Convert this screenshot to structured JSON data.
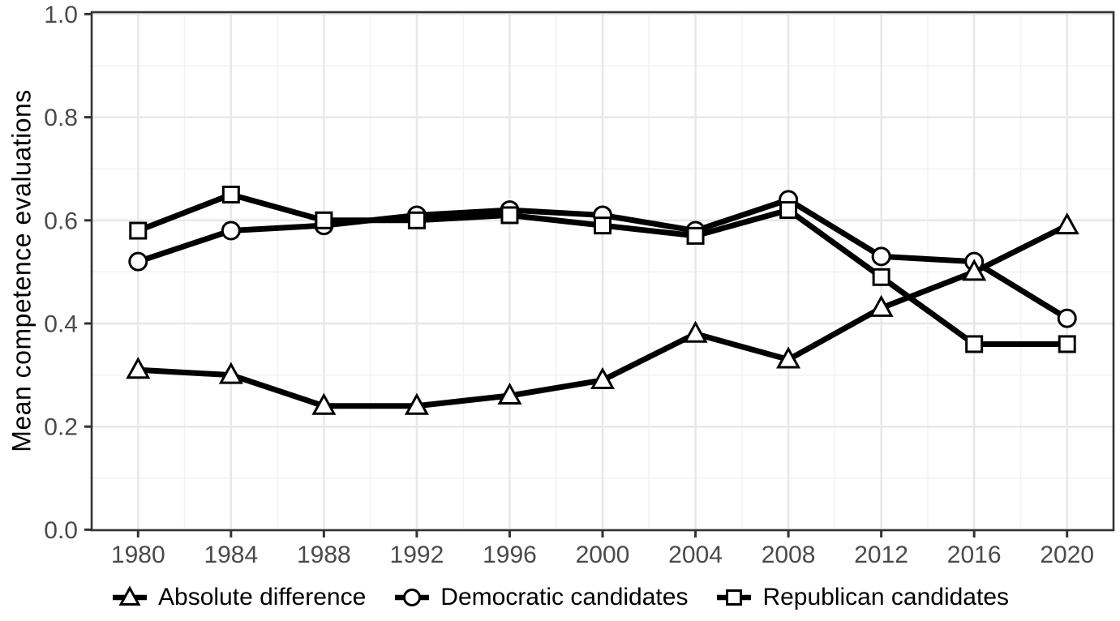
{
  "chart_data": {
    "type": "line",
    "title": "",
    "xlabel": "",
    "ylabel": "Mean competence evaluations",
    "x": [
      1980,
      1984,
      1988,
      1992,
      1996,
      2000,
      2004,
      2008,
      2012,
      2016,
      2020
    ],
    "series": [
      {
        "name": "Absolute difference",
        "marker": "triangle",
        "values": [
          0.31,
          0.3,
          0.24,
          0.24,
          0.26,
          0.29,
          0.38,
          0.33,
          0.43,
          0.5,
          0.59
        ]
      },
      {
        "name": "Democratic candidates",
        "marker": "circle",
        "values": [
          0.52,
          0.58,
          0.59,
          0.61,
          0.62,
          0.61,
          0.58,
          0.64,
          0.53,
          0.52,
          0.41
        ]
      },
      {
        "name": "Republican candidates",
        "marker": "square",
        "values": [
          0.58,
          0.65,
          0.6,
          0.6,
          0.61,
          0.59,
          0.57,
          0.62,
          0.49,
          0.36,
          0.36
        ]
      }
    ],
    "xlim": [
      1978,
      2022
    ],
    "ylim": [
      0.0,
      1.0
    ],
    "xticks": [
      {
        "label": "1980",
        "value": 1980
      },
      {
        "label": "1984",
        "value": 1984
      },
      {
        "label": "1988",
        "value": 1988
      },
      {
        "label": "1992",
        "value": 1992
      },
      {
        "label": "1996",
        "value": 1996
      },
      {
        "label": "2000",
        "value": 2000
      },
      {
        "label": "2004",
        "value": 2004
      },
      {
        "label": "2008",
        "value": 2008
      },
      {
        "label": "2012",
        "value": 2012
      },
      {
        "label": "2016",
        "value": 2016
      },
      {
        "label": "2020",
        "value": 2020
      }
    ],
    "yticks": [
      {
        "label": "0.0",
        "value": 0.0
      },
      {
        "label": "0.2",
        "value": 0.2
      },
      {
        "label": "0.4",
        "value": 0.4
      },
      {
        "label": "0.6",
        "value": 0.6
      },
      {
        "label": "0.8",
        "value": 0.8
      },
      {
        "label": "1.0",
        "value": 1.0
      }
    ],
    "minor_yticks": [
      0.1,
      0.3,
      0.5,
      0.7,
      0.9
    ],
    "grid": "major and minor, light gray, white panel, full dark panel border",
    "legend_position": "bottom-center"
  },
  "style": {
    "line_color": "#000000",
    "marker_fill": "#ffffff",
    "marker_stroke": "#000000",
    "grid_major_color": "#e7e7e7",
    "grid_minor_color": "#f2f2f2",
    "panel_border_color": "#333333",
    "tick_color": "#333333",
    "tick_label_color": "#4a4a4a"
  }
}
